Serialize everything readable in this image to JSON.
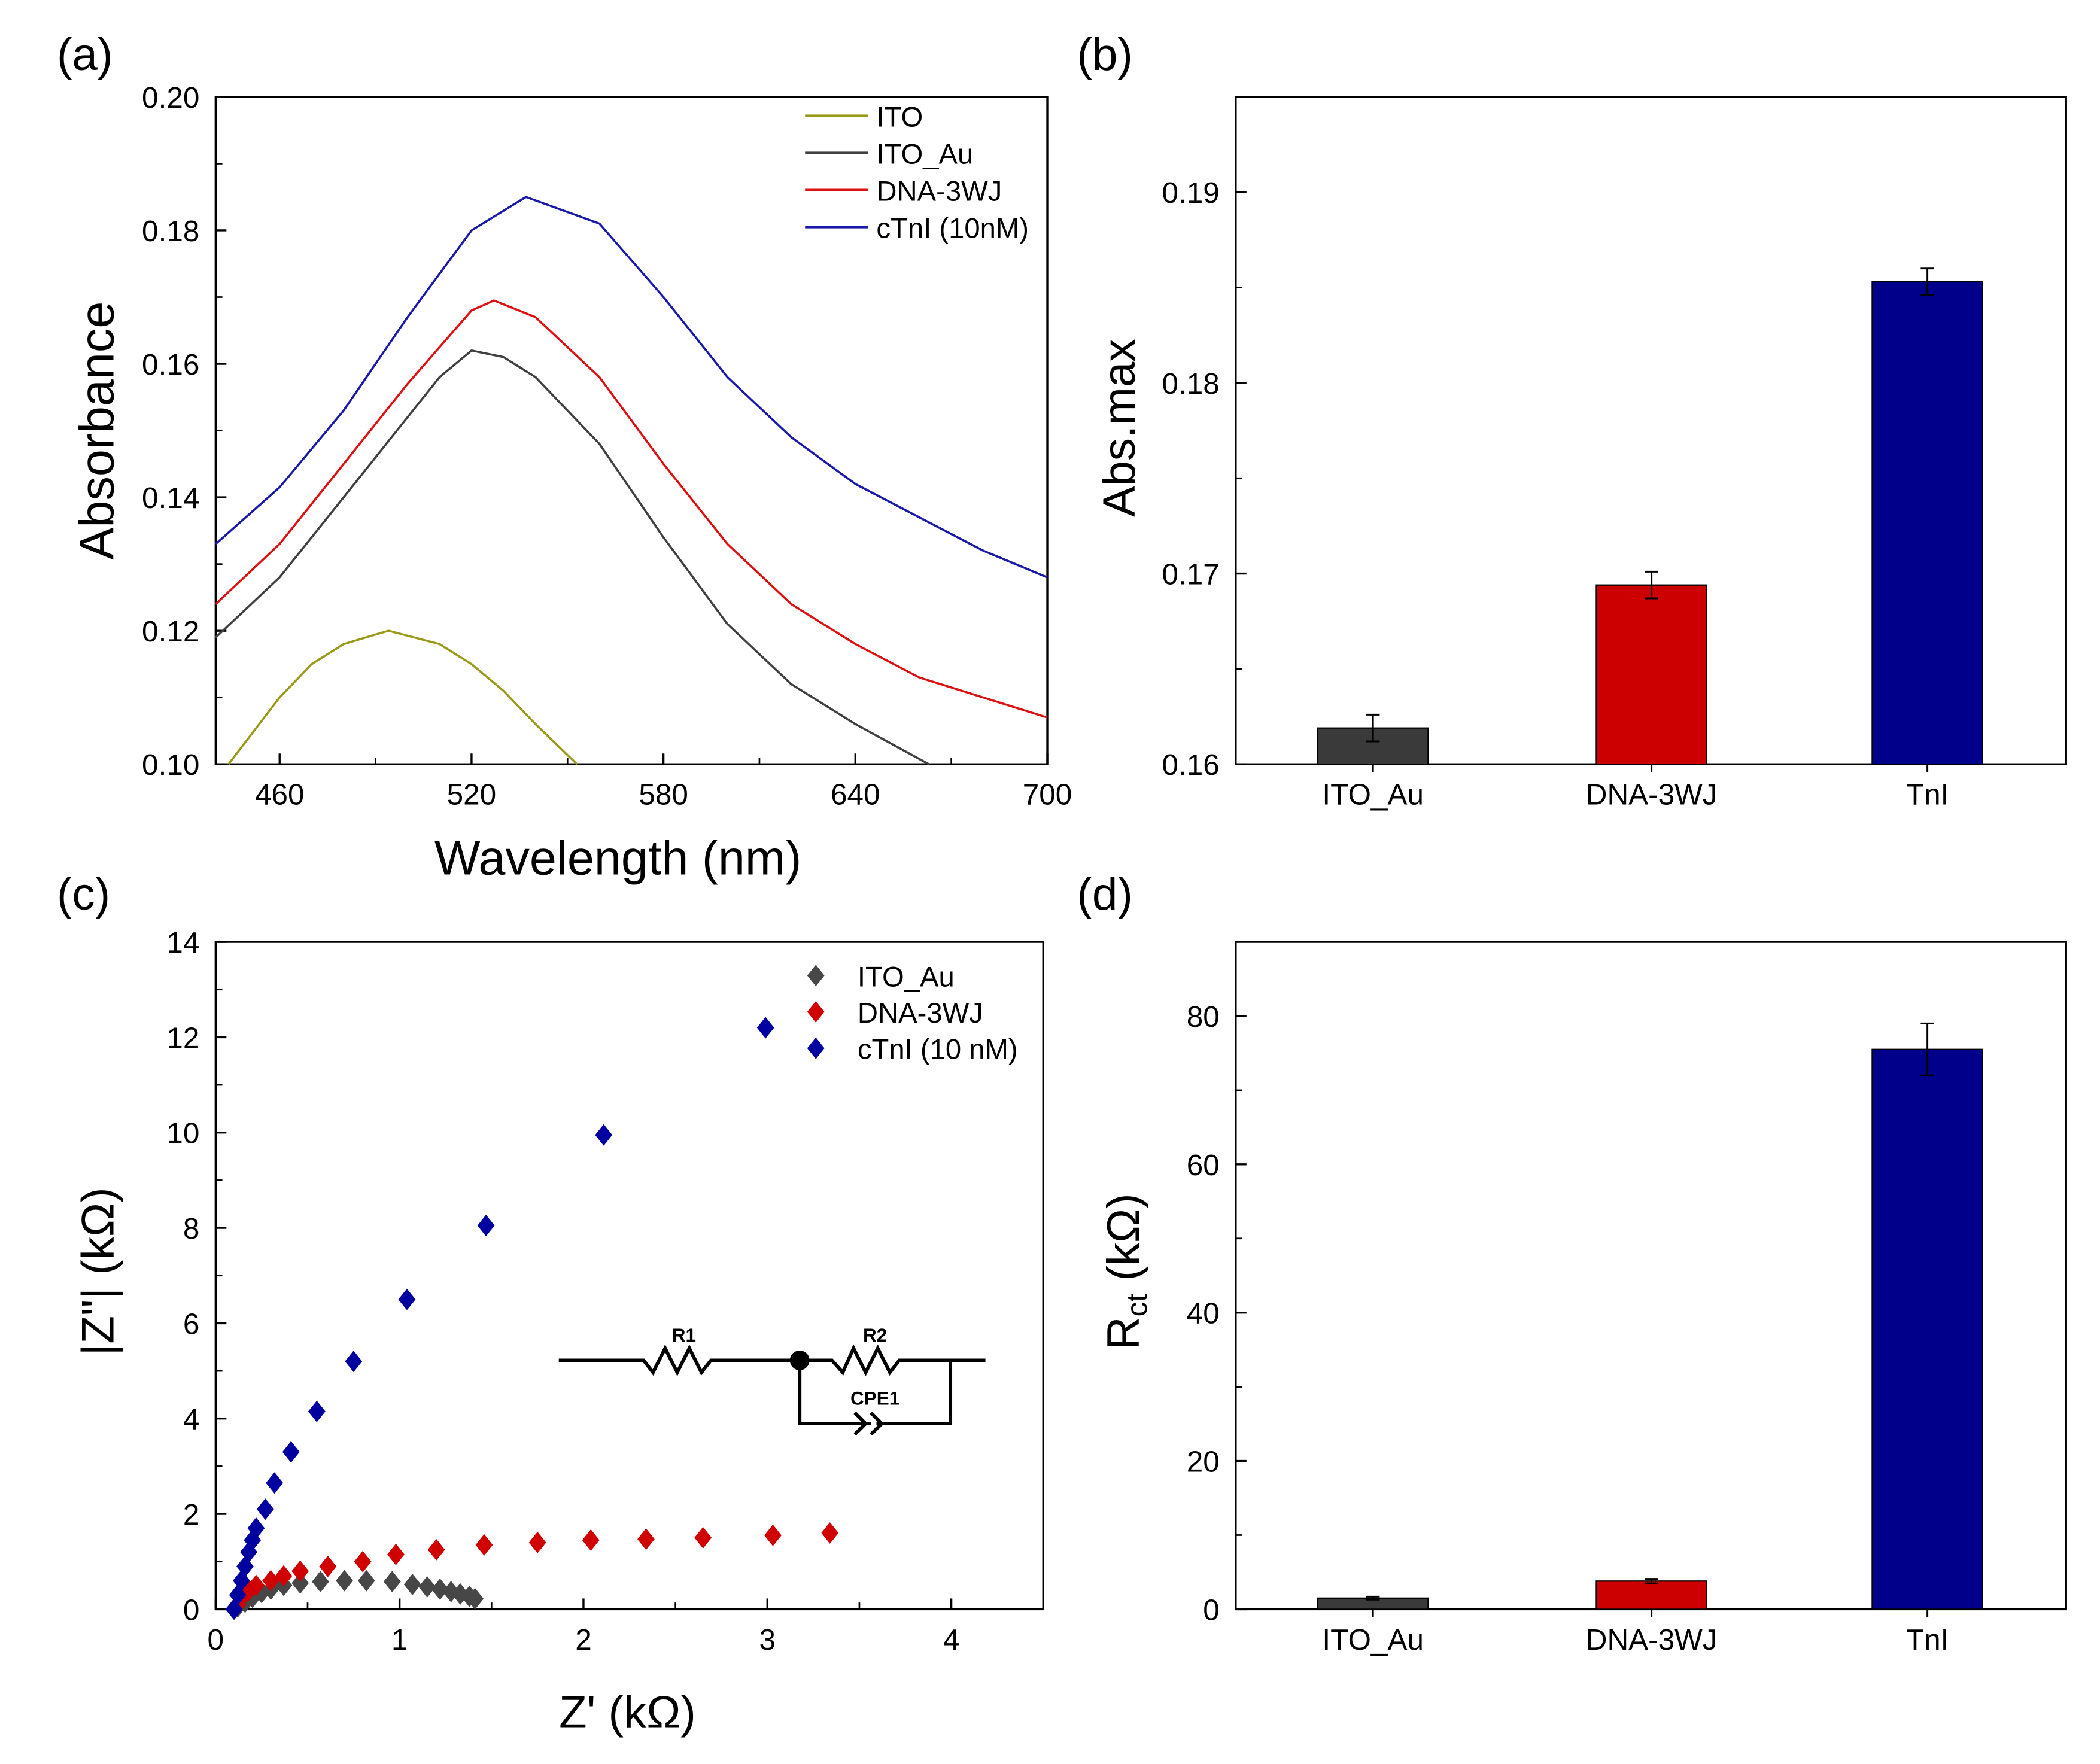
{
  "colors": {
    "ito": "#9a9a1a",
    "ito_au": "#404040",
    "dna": "#cc0000",
    "ctni": "#00008b",
    "bar_dark": "#3a3a3a"
  },
  "panel_labels": [
    "(a)",
    "(b)",
    "(c)",
    "(d)"
  ],
  "circuit": {
    "r1": "R1",
    "r2": "R2",
    "cpe": "CPE1"
  },
  "chart_data": [
    {
      "id": "a",
      "type": "line",
      "xlabel": "Wavelength (nm)",
      "ylabel": "Absorbance",
      "xlim": [
        440,
        700
      ],
      "ylim": [
        0.1,
        0.2
      ],
      "xticks": [
        460,
        520,
        580,
        640,
        700
      ],
      "xtick_labels": [
        "460",
        "520",
        "580",
        "640",
        "700"
      ],
      "yticks": [
        0.1,
        0.12,
        0.14,
        0.16,
        0.18,
        0.2
      ],
      "ytick_labels": [
        "0.10",
        "0.12",
        "0.14",
        "0.16",
        "0.18",
        "0.20"
      ],
      "legend_position": "top-right",
      "series": [
        {
          "name": "ITO",
          "color": "#9a9a1a",
          "x": [
            444,
            460,
            470,
            480,
            494,
            510,
            520,
            530,
            540,
            553
          ],
          "y": [
            0.1,
            0.11,
            0.115,
            0.118,
            0.12,
            0.118,
            0.115,
            0.111,
            0.106,
            0.1
          ]
        },
        {
          "name": "ITO_Au",
          "color": "#404040",
          "x": [
            440,
            460,
            480,
            500,
            510,
            520,
            530,
            540,
            560,
            580,
            600,
            620,
            640,
            663
          ],
          "y": [
            0.119,
            0.128,
            0.14,
            0.152,
            0.158,
            0.162,
            0.161,
            0.158,
            0.148,
            0.134,
            0.121,
            0.112,
            0.106,
            0.1
          ]
        },
        {
          "name": "DNA-3WJ",
          "color": "#dd1111",
          "x": [
            440,
            460,
            480,
            500,
            520,
            527,
            540,
            560,
            580,
            600,
            620,
            640,
            660,
            680,
            700
          ],
          "y": [
            0.124,
            0.133,
            0.145,
            0.157,
            0.168,
            0.1695,
            0.167,
            0.158,
            0.145,
            0.133,
            0.124,
            0.118,
            0.113,
            0.11,
            0.107
          ]
        },
        {
          "name": "cTnI (10nM)",
          "color": "#1a1aaa",
          "x": [
            440,
            460,
            480,
            500,
            520,
            537,
            560,
            580,
            600,
            620,
            640,
            660,
            680,
            700
          ],
          "y": [
            0.133,
            0.1415,
            0.153,
            0.167,
            0.18,
            0.185,
            0.181,
            0.17,
            0.158,
            0.149,
            0.142,
            0.137,
            0.132,
            0.128
          ]
        }
      ]
    },
    {
      "id": "b",
      "type": "bar",
      "xlabel": "",
      "ylabel": "Abs.max",
      "ylim": [
        0.16,
        0.195
      ],
      "yticks": [
        0.16,
        0.17,
        0.18,
        0.19
      ],
      "ytick_labels": [
        "0.16",
        "0.17",
        "0.18",
        "0.19"
      ],
      "categories": [
        "ITO_Au",
        "DNA-3WJ",
        "TnI"
      ],
      "values": [
        0.1619,
        0.1694,
        0.1853
      ],
      "errors": [
        0.0007,
        0.0007,
        0.0007
      ],
      "colors": [
        "#3a3a3a",
        "#cc0000",
        "#00008b"
      ]
    },
    {
      "id": "c",
      "type": "scatter",
      "xlabel": "Z' (kΩ)",
      "ylabel": "|Z\"| (kΩ)",
      "xlim": [
        0,
        4.5
      ],
      "ylim": [
        0,
        14
      ],
      "xticks": [
        0,
        1,
        2,
        3,
        4
      ],
      "xtick_labels": [
        "0",
        "1",
        "2",
        "3",
        "4"
      ],
      "yticks": [
        0,
        2,
        4,
        6,
        8,
        10,
        12,
        14
      ],
      "ytick_labels": [
        "0",
        "2",
        "4",
        "6",
        "8",
        "10",
        "12",
        "14"
      ],
      "legend_position": "top-right",
      "series": [
        {
          "name": "ITO_Au",
          "color": "#474747",
          "x": [
            0.12,
            0.16,
            0.2,
            0.25,
            0.3,
            0.37,
            0.46,
            0.57,
            0.7,
            0.82,
            0.96,
            1.07,
            1.15,
            1.22,
            1.28,
            1.33,
            1.38,
            1.41
          ],
          "y": [
            0.05,
            0.15,
            0.25,
            0.35,
            0.42,
            0.5,
            0.55,
            0.58,
            0.6,
            0.6,
            0.58,
            0.52,
            0.47,
            0.42,
            0.37,
            0.32,
            0.27,
            0.22
          ]
        },
        {
          "name": "DNA-3WJ",
          "color": "#d00000",
          "x": [
            0.12,
            0.15,
            0.18,
            0.22,
            0.3,
            0.37,
            0.46,
            0.61,
            0.8,
            0.98,
            1.2,
            1.46,
            1.75,
            2.04,
            2.34,
            2.65,
            3.03,
            3.34
          ],
          "y": [
            0.1,
            0.3,
            0.4,
            0.5,
            0.6,
            0.7,
            0.8,
            0.9,
            1.0,
            1.15,
            1.25,
            1.35,
            1.4,
            1.45,
            1.47,
            1.5,
            1.55,
            1.6
          ]
        },
        {
          "name": "cTnI (10 nM)",
          "color": "#0000a0",
          "x": [
            0.1,
            0.12,
            0.14,
            0.16,
            0.18,
            0.2,
            0.22,
            0.27,
            0.32,
            0.41,
            0.55,
            0.75,
            1.04,
            1.47,
            2.11,
            2.99
          ],
          "y": [
            0.0,
            0.3,
            0.6,
            0.9,
            1.2,
            1.45,
            1.7,
            2.1,
            2.65,
            3.3,
            4.15,
            5.2,
            6.5,
            8.05,
            9.95,
            12.2
          ]
        }
      ]
    },
    {
      "id": "d",
      "type": "bar",
      "xlabel": "",
      "ylabel": "R",
      "ylabel_sub": "ct",
      "ylabel_unit": " (kΩ)",
      "ylim": [
        0,
        90
      ],
      "yticks": [
        0,
        20,
        40,
        60,
        80
      ],
      "ytick_labels": [
        "0",
        "20",
        "40",
        "60",
        "80"
      ],
      "categories": [
        "ITO_Au",
        "DNA-3WJ",
        "TnI"
      ],
      "values": [
        1.5,
        3.8,
        75.5
      ],
      "errors": [
        0.2,
        0.3,
        3.5
      ],
      "colors": [
        "#3a3a3a",
        "#cc0000",
        "#00008b"
      ]
    }
  ]
}
